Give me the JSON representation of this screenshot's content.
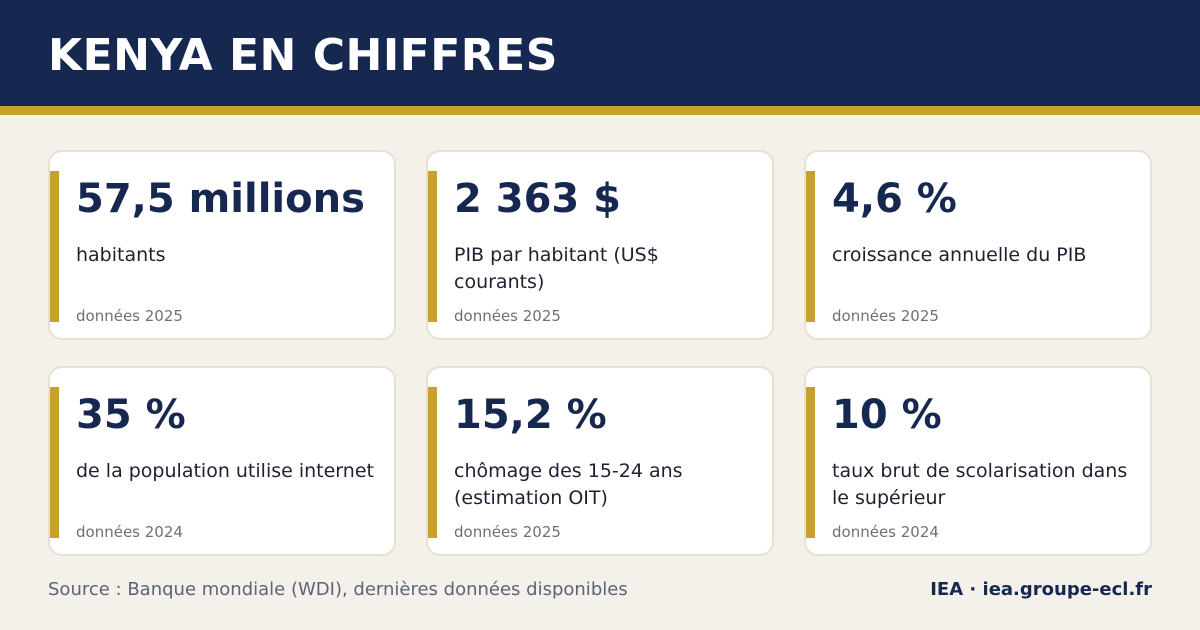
{
  "header": {
    "title": "KENYA EN CHIFFRES"
  },
  "colors": {
    "header_background": "#16284f",
    "accent_gold": "#c9a02e",
    "page_background": "#f4f1ea",
    "card_background": "#ffffff",
    "value_text": "#16284f"
  },
  "cards": [
    {
      "value": "57,5 millions",
      "label": "habitants",
      "year": "données 2025"
    },
    {
      "value": "2 363 $",
      "label": "PIB par habitant (US$ courants)",
      "year": "données 2025"
    },
    {
      "value": "4,6 %",
      "label": "croissance annuelle du PIB",
      "year": "données 2025"
    },
    {
      "value": "35 %",
      "label": "de la population utilise internet",
      "year": "données 2024"
    },
    {
      "value": "15,2 %",
      "label": "chômage des 15-24 ans (estimation OIT)",
      "year": "données 2025"
    },
    {
      "value": "10 %",
      "label": "taux brut de scolarisation dans le supérieur",
      "year": "données 2024"
    }
  ],
  "footer": {
    "source": "Source : Banque mondiale (WDI), dernières données disponibles",
    "brand": "IEA · iea.groupe-ecl.fr"
  }
}
